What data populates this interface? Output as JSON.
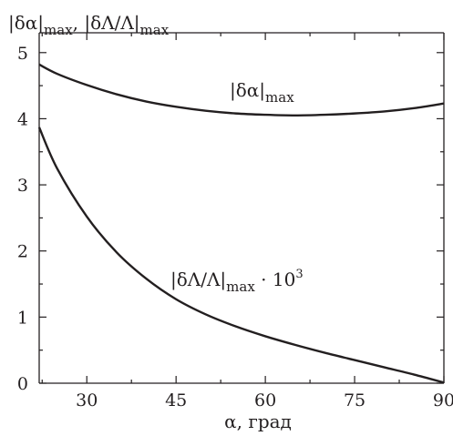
{
  "chart_data": {
    "type": "line",
    "title": "",
    "xlabel": "α, град",
    "ylabel": "|δα|max, |δΛ/Λ|max",
    "xlim": [
      22,
      90
    ],
    "ylim": [
      0,
      5.3
    ],
    "x_ticks": [
      30,
      45,
      60,
      75,
      90
    ],
    "y_ticks": [
      0,
      1,
      2,
      3,
      4,
      5
    ],
    "x_tick_labels": [
      "30",
      "45",
      "60",
      "75",
      "90"
    ],
    "y_tick_labels": [
      "0",
      "1",
      "2",
      "3",
      "4",
      "5"
    ],
    "grid": false,
    "series": [
      {
        "name": "|δα|max",
        "color": "#231f20",
        "x": [
          22,
          25,
          30,
          35,
          40,
          45,
          50,
          55,
          60,
          65,
          70,
          75,
          80,
          85,
          90
        ],
        "y": [
          4.82,
          4.68,
          4.51,
          4.37,
          4.26,
          4.18,
          4.12,
          4.08,
          4.06,
          4.05,
          4.06,
          4.08,
          4.11,
          4.16,
          4.23
        ]
      },
      {
        "name": "|δΛ/Λ|max · 10³",
        "color": "#231f20",
        "x": [
          22,
          25,
          30,
          35,
          40,
          45,
          50,
          55,
          60,
          65,
          70,
          75,
          80,
          85,
          90
        ],
        "y": [
          3.87,
          3.25,
          2.52,
          1.98,
          1.58,
          1.27,
          1.04,
          0.86,
          0.71,
          0.58,
          0.46,
          0.35,
          0.24,
          0.13,
          0.01
        ]
      }
    ]
  }
}
